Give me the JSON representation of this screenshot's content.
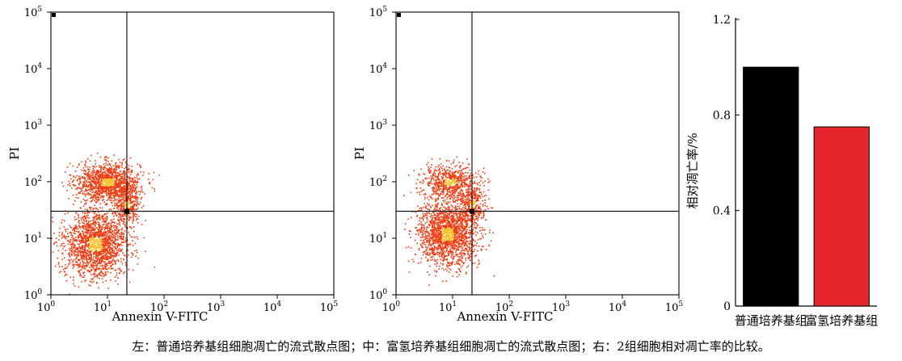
{
  "chart_data": [
    {
      "type": "scatter",
      "x_label": "Annexin V-FITC",
      "y_label": "PI",
      "x_scale": "log",
      "y_scale": "log",
      "x_range": [
        1,
        100000
      ],
      "y_range": [
        1,
        100000
      ],
      "x_ticks": [
        {
          "value": 1,
          "base": "10",
          "exp": "0"
        },
        {
          "value": 10,
          "base": "10",
          "exp": "1"
        },
        {
          "value": 100,
          "base": "10",
          "exp": "2"
        },
        {
          "value": 1000,
          "base": "10",
          "exp": "3"
        },
        {
          "value": 10000,
          "base": "10",
          "exp": "4"
        },
        {
          "value": 100000,
          "base": "10",
          "exp": "5"
        }
      ],
      "y_ticks": [
        {
          "value": 1,
          "base": "10",
          "exp": "0"
        },
        {
          "value": 10,
          "base": "10",
          "exp": "1"
        },
        {
          "value": 100,
          "base": "10",
          "exp": "2"
        },
        {
          "value": 1000,
          "base": "10",
          "exp": "3"
        },
        {
          "value": 10000,
          "base": "10",
          "exp": "4"
        },
        {
          "value": 100000,
          "base": "10",
          "exp": "5"
        }
      ],
      "gate": {
        "x": 22,
        "y": 30
      },
      "populations": [
        {
          "center_x": 10,
          "center_y": 100,
          "spread_x": 0.28,
          "spread_y": 0.17,
          "count": 1300
        },
        {
          "center_x": 6,
          "center_y": 8,
          "spread_x": 0.28,
          "spread_y": 0.3,
          "count": 1800
        },
        {
          "center_x": 22,
          "center_y": 40,
          "spread_x": 0.12,
          "spread_y": 0.16,
          "count": 350
        }
      ],
      "point_color": "#f03a10",
      "dense_color": "#f5c430"
    },
    {
      "type": "scatter",
      "x_label": "Annexin V-FITC",
      "y_label": "PI",
      "x_scale": "log",
      "y_scale": "log",
      "x_range": [
        1,
        100000
      ],
      "y_range": [
        1,
        100000
      ],
      "x_ticks": [
        {
          "value": 1,
          "base": "10",
          "exp": "0"
        },
        {
          "value": 10,
          "base": "10",
          "exp": "1"
        },
        {
          "value": 100,
          "base": "10",
          "exp": "2"
        },
        {
          "value": 1000,
          "base": "10",
          "exp": "3"
        },
        {
          "value": 10000,
          "base": "10",
          "exp": "4"
        },
        {
          "value": 100000,
          "base": "10",
          "exp": "5"
        }
      ],
      "y_ticks": [
        {
          "value": 1,
          "base": "10",
          "exp": "0"
        },
        {
          "value": 10,
          "base": "10",
          "exp": "1"
        },
        {
          "value": 100,
          "base": "10",
          "exp": "2"
        },
        {
          "value": 1000,
          "base": "10",
          "exp": "3"
        },
        {
          "value": 10000,
          "base": "10",
          "exp": "4"
        },
        {
          "value": 100000,
          "base": "10",
          "exp": "5"
        }
      ],
      "gate": {
        "x": 22,
        "y": 30
      },
      "populations": [
        {
          "center_x": 9,
          "center_y": 100,
          "spread_x": 0.26,
          "spread_y": 0.15,
          "count": 700
        },
        {
          "center_x": 8,
          "center_y": 12,
          "spread_x": 0.26,
          "spread_y": 0.28,
          "count": 1800
        },
        {
          "center_x": 22,
          "center_y": 40,
          "spread_x": 0.12,
          "spread_y": 0.16,
          "count": 300
        }
      ],
      "point_color": "#f03a10",
      "dense_color": "#f5c430"
    },
    {
      "type": "bar",
      "categories": [
        "普通培养基组",
        "富氢培养基组"
      ],
      "values": [
        1.0,
        0.75
      ],
      "colors": [
        "#000000",
        "#e5262d"
      ],
      "y_label": "相对凋亡率/%",
      "y_range": [
        0,
        1.2
      ],
      "y_ticks": [
        "0",
        "0.4",
        "0.8",
        "1.2"
      ],
      "grid": false
    }
  ],
  "caption": "左：普通培养基组细胞凋亡的流式散点图；中：富氢培养基组细胞凋亡的流式散点图；右：2组细胞相对凋亡率的比较。"
}
